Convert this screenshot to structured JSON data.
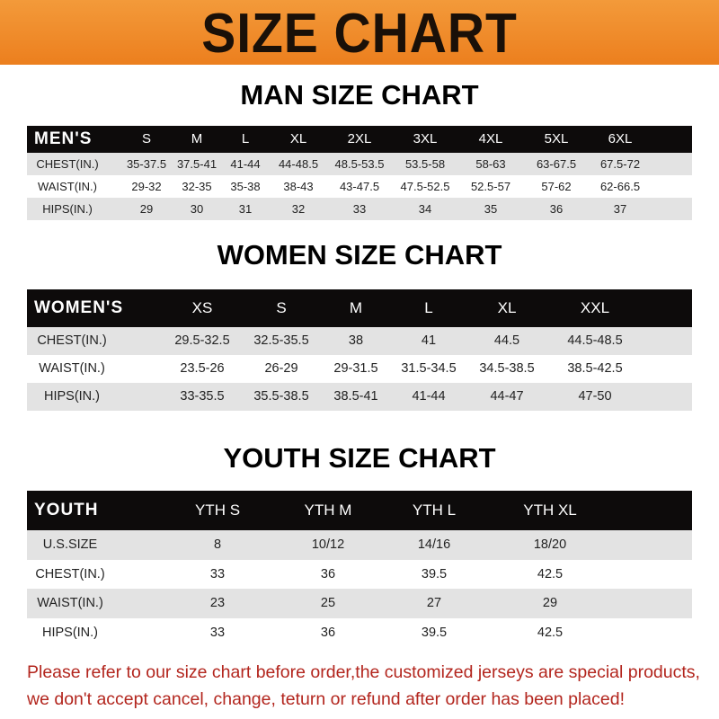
{
  "banner": {
    "title": "SIZE CHART"
  },
  "men": {
    "title": "MAN SIZE CHART",
    "header": [
      "MEN'S",
      "S",
      "M",
      "L",
      "XL",
      "2XL",
      "3XL",
      "4XL",
      "5XL",
      "6XL"
    ],
    "rows": [
      [
        "CHEST(IN.)",
        "35-37.5",
        "37.5-41",
        "41-44",
        "44-48.5",
        "48.5-53.5",
        "53.5-58",
        "58-63",
        "63-67.5",
        "67.5-72"
      ],
      [
        "WAIST(IN.)",
        "29-32",
        "32-35",
        "35-38",
        "38-43",
        "43-47.5",
        "47.5-52.5",
        "52.5-57",
        "57-62",
        "62-66.5"
      ],
      [
        "HIPS(IN.)",
        "29",
        "30",
        "31",
        "32",
        "33",
        "34",
        "35",
        "36",
        "37"
      ]
    ]
  },
  "women": {
    "title": "WOMEN SIZE CHART",
    "header": [
      "WOMEN'S",
      "XS",
      "S",
      "M",
      "L",
      "XL",
      "XXL"
    ],
    "rows": [
      [
        "CHEST(IN.)",
        "29.5-32.5",
        "32.5-35.5",
        "38",
        "41",
        "44.5",
        "44.5-48.5"
      ],
      [
        "WAIST(IN.)",
        "23.5-26",
        "26-29",
        "29-31.5",
        "31.5-34.5",
        "34.5-38.5",
        "38.5-42.5"
      ],
      [
        "HIPS(IN.)",
        "33-35.5",
        "35.5-38.5",
        "38.5-41",
        "41-44",
        "44-47",
        "47-50"
      ]
    ]
  },
  "youth": {
    "title": "YOUTH SIZE CHART",
    "header": [
      "YOUTH",
      "YTH S",
      "YTH M",
      "YTH L",
      "YTH XL"
    ],
    "rows": [
      [
        "U.S.SIZE",
        "8",
        "10/12",
        "14/16",
        "18/20"
      ],
      [
        "CHEST(IN.)",
        "33",
        "36",
        "39.5",
        "42.5"
      ],
      [
        "WAIST(IN.)",
        "23",
        "25",
        "27",
        "29"
      ],
      [
        "HIPS(IN.)",
        "33",
        "36",
        "39.5",
        "42.5"
      ]
    ]
  },
  "notice": {
    "line1": "Please refer to our size chart before order,the customized jerseys are special products,",
    "line2": "we don't accept cancel, change, teturn or refund after order has been placed!"
  },
  "colors": {
    "banner": "#ee8a28",
    "header_row": "#0d0b0b",
    "stripe": "#e3e3e3",
    "notice": "#b3261e"
  }
}
